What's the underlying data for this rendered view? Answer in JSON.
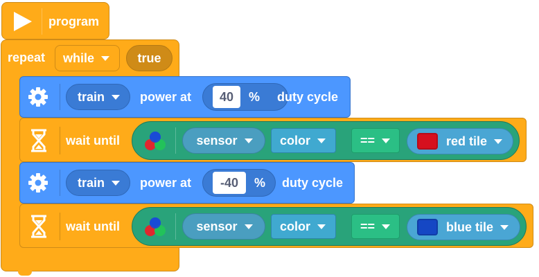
{
  "hat": {
    "label": "program"
  },
  "repeat_block": {
    "label": "repeat",
    "mode": "while",
    "condition": "true"
  },
  "blocks": [
    {
      "type": "motor-power",
      "motor": "train",
      "label_before": "power at",
      "value": "40",
      "unit": "%",
      "label_after": "duty cycle"
    },
    {
      "type": "wait-until",
      "label": "wait until",
      "sensor": "sensor",
      "mode": "color",
      "operator": "==",
      "tile": "red tile",
      "tile_color": "#d6101e"
    },
    {
      "type": "motor-power",
      "motor": "train",
      "label_before": "power at",
      "value": "-40",
      "unit": "%",
      "label_after": "duty cycle"
    },
    {
      "type": "wait-until",
      "label": "wait until",
      "sensor": "sensor",
      "mode": "color",
      "operator": "==",
      "tile": "blue tile",
      "tile_color": "#1547c4"
    }
  ],
  "icons": {
    "hat": "play-icon",
    "motor": "gear-icon",
    "wait": "hourglass-icon",
    "sensor": "color-sensor-icon",
    "dropdown": "caret-down-icon"
  },
  "colors": {
    "control": "#ffab19",
    "motor": "#4c97ff",
    "sensor": "#29a37a"
  }
}
